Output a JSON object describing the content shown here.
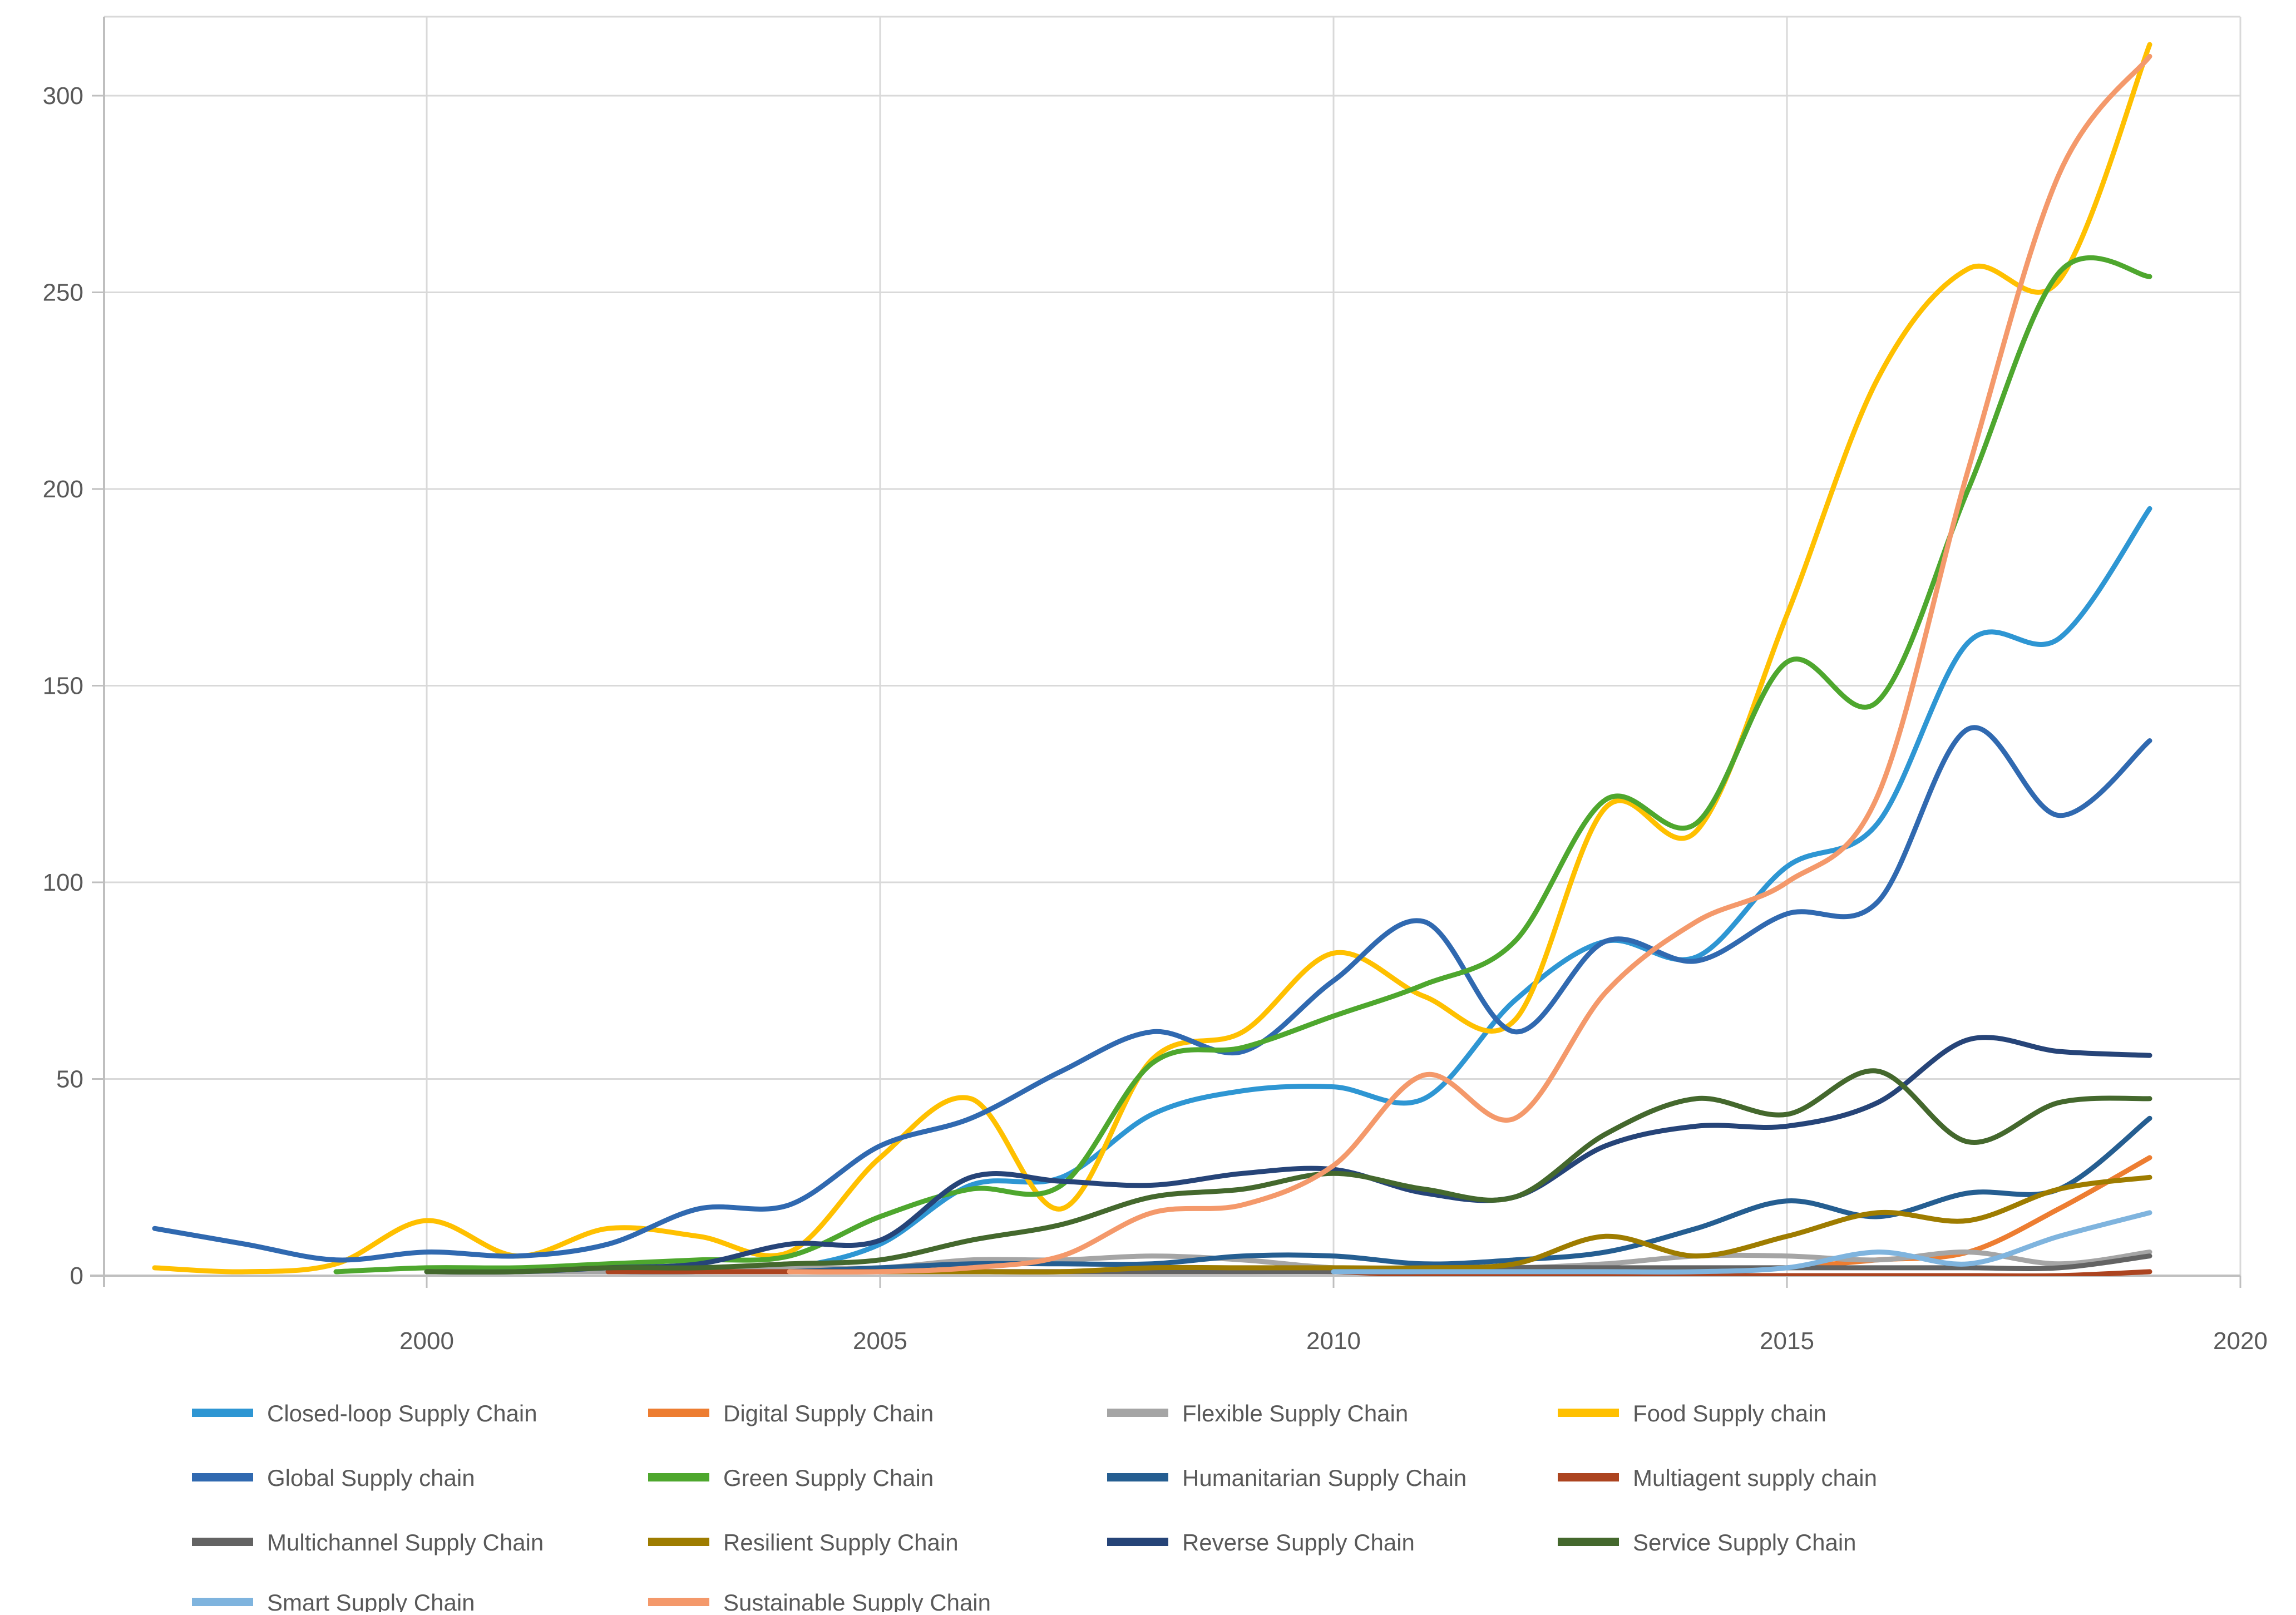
{
  "chart_data": {
    "type": "line",
    "title": "",
    "xlabel": "",
    "ylabel": "",
    "grid": true,
    "legend_position": "bottom",
    "x": [
      1997,
      1998,
      1999,
      2000,
      2001,
      2002,
      2003,
      2004,
      2005,
      2006,
      2007,
      2008,
      2009,
      2010,
      2011,
      2012,
      2013,
      2014,
      2015,
      2016,
      2017,
      2018,
      2019
    ],
    "x_ticks": [
      2000,
      2005,
      2010,
      2015,
      2020
    ],
    "x_tick_labels": [
      "2000",
      "2005",
      "2010",
      "2015",
      "2020"
    ],
    "y_ticks": [
      0,
      50,
      100,
      150,
      200,
      250,
      300
    ],
    "y_tick_labels": [
      "0",
      "50",
      "100",
      "150",
      "200",
      "250",
      "300"
    ],
    "xlim": [
      1996.44,
      2020
    ],
    "ylim": [
      0,
      320
    ],
    "series": [
      {
        "name": "Closed-loop Supply Chain",
        "color": "#2E96D3",
        "values": [
          null,
          null,
          null,
          null,
          null,
          1,
          1,
          2,
          8,
          23,
          25,
          41,
          47,
          48,
          45,
          70,
          85,
          81,
          104,
          115,
          161,
          162,
          195
        ]
      },
      {
        "name": "Digital Supply Chain",
        "color": "#ED7D31",
        "values": [
          null,
          null,
          null,
          null,
          null,
          null,
          null,
          null,
          null,
          null,
          null,
          null,
          null,
          null,
          1,
          1,
          1,
          1,
          2,
          4,
          6,
          17,
          30
        ]
      },
      {
        "name": "Flexible Supply Chain",
        "color": "#A5A5A5",
        "values": [
          null,
          null,
          null,
          null,
          1,
          1,
          1,
          2,
          2,
          4,
          4,
          5,
          4,
          2,
          2,
          2,
          3,
          5,
          5,
          4,
          6,
          3,
          6
        ]
      },
      {
        "name": "Food Supply chain",
        "color": "#FFC000",
        "values": [
          2,
          1,
          3,
          14,
          5,
          12,
          10,
          6,
          30,
          45,
          17,
          55,
          62,
          82,
          71,
          65,
          119,
          113,
          168,
          228,
          256,
          253,
          313
        ]
      },
      {
        "name": "Global Supply chain",
        "color": "#3069B0",
        "values": [
          12,
          8,
          4,
          6,
          5,
          8,
          17,
          18,
          33,
          40,
          52,
          62,
          57,
          75,
          90,
          62,
          85,
          80,
          92,
          95,
          139,
          117,
          136
        ]
      },
      {
        "name": "Green Supply Chain",
        "color": "#4EA72E",
        "values": [
          null,
          null,
          1,
          2,
          2,
          3,
          4,
          5,
          15,
          22,
          23,
          54,
          58,
          66,
          74,
          85,
          121,
          115,
          156,
          146,
          200,
          255,
          254
        ]
      },
      {
        "name": "Humanitarian Supply Chain",
        "color": "#255E91",
        "values": [
          null,
          null,
          null,
          null,
          null,
          null,
          null,
          1,
          2,
          3,
          3,
          3,
          5,
          5,
          3,
          4,
          6,
          12,
          19,
          15,
          21,
          22,
          40
        ]
      },
      {
        "name": "Multiagent supply chain",
        "color": "#AC4420",
        "values": [
          null,
          null,
          null,
          null,
          null,
          1,
          1,
          1,
          1,
          1,
          1,
          1,
          1,
          1,
          0,
          0,
          0,
          0,
          0,
          0,
          0,
          0,
          1
        ]
      },
      {
        "name": "Multichannel Supply Chain",
        "color": "#636363",
        "values": [
          null,
          null,
          null,
          null,
          null,
          null,
          null,
          null,
          1,
          1,
          1,
          1,
          1,
          1,
          1,
          2,
          2,
          2,
          2,
          2,
          2,
          2,
          5
        ]
      },
      {
        "name": "Resilient Supply Chain",
        "color": "#9E7C00",
        "values": [
          null,
          null,
          null,
          null,
          null,
          null,
          null,
          null,
          1,
          1,
          1,
          2,
          2,
          2,
          2,
          3,
          10,
          5,
          10,
          16,
          14,
          22,
          25
        ]
      },
      {
        "name": "Reverse Supply Chain",
        "color": "#264478",
        "values": [
          null,
          null,
          null,
          1,
          1,
          2,
          3,
          8,
          9,
          25,
          24,
          23,
          26,
          27,
          21,
          20,
          33,
          38,
          38,
          44,
          60,
          57,
          56
        ]
      },
      {
        "name": "Service Supply Chain",
        "color": "#44682D",
        "values": [
          null,
          null,
          null,
          1,
          1,
          2,
          2,
          3,
          4,
          9,
          13,
          20,
          22,
          26,
          22,
          20,
          36,
          45,
          41,
          52,
          34,
          44,
          45
        ]
      },
      {
        "name": "Smart Supply Chain",
        "color": "#7FB4DE",
        "values": [
          null,
          null,
          null,
          null,
          null,
          null,
          null,
          null,
          null,
          null,
          null,
          null,
          null,
          1,
          1,
          1,
          1,
          1,
          2,
          6,
          3,
          10,
          16
        ]
      },
      {
        "name": "Sustainable Supply Chain",
        "color": "#F4996B",
        "values": [
          null,
          null,
          null,
          null,
          null,
          null,
          null,
          1,
          1,
          2,
          5,
          16,
          18,
          28,
          51,
          40,
          72,
          90,
          100,
          122,
          205,
          280,
          310
        ]
      }
    ]
  },
  "style": {
    "background": "#FFFFFF",
    "axis_color": "#BFBFBF",
    "gridline_color": "#D9D9D9",
    "tick_label_color": "#595959",
    "legend_label_color": "#595959"
  }
}
